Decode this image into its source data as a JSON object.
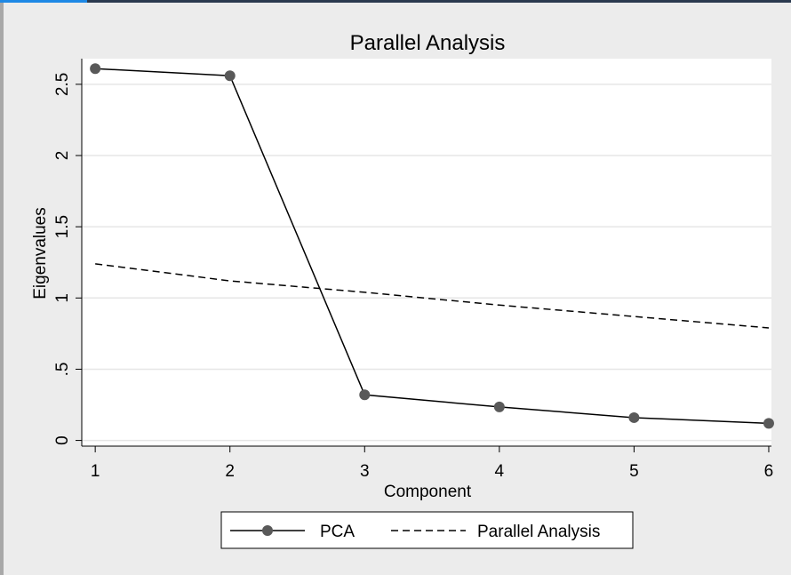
{
  "chart_data": {
    "type": "line",
    "title": "Parallel Analysis",
    "xlabel": "Component",
    "ylabel": "Eigenvalues",
    "x": [
      1,
      2,
      3,
      4,
      5,
      6
    ],
    "xticks": [
      "1",
      "2",
      "3",
      "4",
      "5",
      "6"
    ],
    "yticks": [
      {
        "value": 0,
        "label": "0"
      },
      {
        "value": 0.5,
        "label": ".5"
      },
      {
        "value": 1,
        "label": "1"
      },
      {
        "value": 1.5,
        "label": "1.5"
      },
      {
        "value": 2,
        "label": "2"
      },
      {
        "value": 2.5,
        "label": "2.5"
      }
    ],
    "xlim": [
      0.9,
      6.02
    ],
    "ylim": [
      -0.04,
      2.68
    ],
    "grid": true,
    "legend_position": "bottom",
    "series": [
      {
        "name": "PCA",
        "style": "solid",
        "markers": true,
        "color": "#000000",
        "marker_color": "#595959",
        "values": [
          2.61,
          2.56,
          0.32,
          0.235,
          0.16,
          0.12
        ]
      },
      {
        "name": "Parallel Analysis",
        "style": "dashed",
        "markers": false,
        "color": "#000000",
        "values": [
          1.24,
          1.12,
          1.04,
          0.95,
          0.87,
          0.79
        ]
      }
    ]
  },
  "colors": {
    "page_background": "#ececec",
    "plot_background": "#ffffff",
    "grid": "#e6e6e6",
    "window_accent": "#1e88e5",
    "window_bar": "#2b3a4f"
  }
}
